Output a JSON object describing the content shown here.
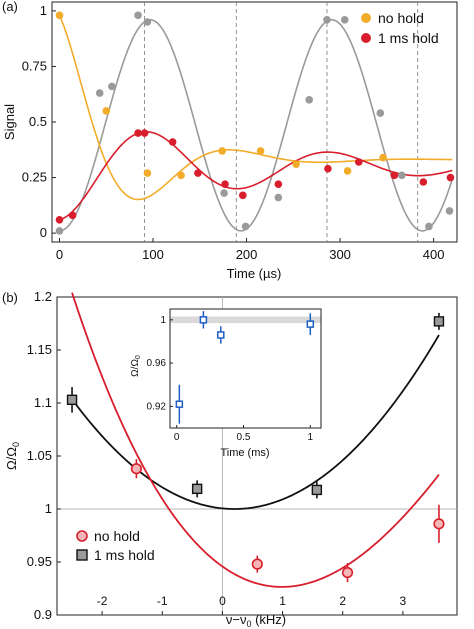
{
  "chart_data": [
    {
      "type": "scatter",
      "panel_label": "(a)",
      "xlabel": "Time (µs)",
      "ylabel": "Signal",
      "xlim": [
        -8,
        425
      ],
      "ylim": [
        -0.04,
        1.04
      ],
      "xticks": [
        0,
        100,
        200,
        300,
        400
      ],
      "yticks": [
        0,
        0.25,
        0.5,
        0.75,
        1
      ],
      "ytick_labels": [
        "0",
        "0.25",
        "0.5",
        "0.75",
        "1"
      ],
      "vlines": [
        91,
        189,
        286,
        383
      ],
      "legend_position": "top-right",
      "series": [
        {
          "name": "no hold",
          "color": "#f2ac2a",
          "x": [
            0,
            50,
            94,
            130,
            174,
            215,
            253,
            308,
            346
          ],
          "y": [
            0.98,
            0.55,
            0.27,
            0.26,
            0.37,
            0.37,
            0.31,
            0.28,
            0.34
          ]
        },
        {
          "name": "1 ms hold",
          "color": "#d81e2c",
          "x": [
            0,
            14,
            84,
            91,
            121,
            148,
            177,
            196,
            234,
            287,
            320,
            358,
            389,
            418
          ],
          "y": [
            0.06,
            0.08,
            0.45,
            0.45,
            0.41,
            0.27,
            0.22,
            0.17,
            0.22,
            0.29,
            0.32,
            0.26,
            0.23,
            0.25
          ]
        },
        {
          "name": "",
          "color": "#9a9a9a",
          "x": [
            0,
            43,
            56,
            84,
            94,
            176,
            199,
            234,
            267,
            286,
            305,
            343,
            366,
            395,
            417
          ],
          "y": [
            0.01,
            0.63,
            0.66,
            0.98,
            0.95,
            0.18,
            0.03,
            0.16,
            0.6,
            0.96,
            0.96,
            0.54,
            0.26,
            0.03,
            0.1
          ]
        }
      ],
      "fits": {
        "no_hold": {
          "form": "exp_decay_cos",
          "c": 0.33,
          "a": 0.65,
          "tau": 70,
          "period": 194,
          "color": "#f2ac2a"
        },
        "hold": {
          "form": "exp_decay_cos",
          "c": 0.3,
          "a": -0.24,
          "tau": 220,
          "period": 194,
          "color": "#d81e2c"
        },
        "gray": {
          "form": "cos",
          "c": 0.485,
          "a": -0.475,
          "period": 194,
          "color": "#9a9a9a"
        }
      }
    },
    {
      "type": "scatter",
      "panel_label": "(b)",
      "xlabel": "ν−ν₀ (kHz)",
      "ylabel": "Ω/Ω₀",
      "xlim": [
        -2.75,
        3.9
      ],
      "ylim": [
        0.9,
        1.2
      ],
      "xticks": [
        -2,
        -1,
        0,
        1,
        2,
        3
      ],
      "xtick_labels": [
        "-2",
        "-1",
        "0",
        "1",
        "2",
        "3"
      ],
      "yticks": [
        0.9,
        0.95,
        1,
        1.05,
        1.1,
        1.15,
        1.2
      ],
      "ytick_labels": [
        "0.9",
        "0.95",
        "1",
        "1.05",
        "1.1",
        "1.15",
        "1.2"
      ],
      "hline": 1,
      "vline": 0,
      "legend_position": "bottom-left",
      "series": [
        {
          "name": "no hold",
          "color": "#d81e2c",
          "marker": "circle",
          "x": [
            -1.43,
            0.58,
            2.08,
            3.6
          ],
          "y": [
            1.038,
            0.948,
            0.94,
            0.986
          ],
          "yerr": [
            0.009,
            0.008,
            0.009,
            0.018
          ]
        },
        {
          "name": "1 ms hold",
          "color": "#555555",
          "marker": "square",
          "x": [
            -2.5,
            -0.42,
            1.57,
            3.6
          ],
          "y": [
            1.103,
            1.019,
            1.018,
            1.177
          ],
          "yerr": [
            0.012,
            0.008,
            0.008,
            0.008
          ]
        }
      ],
      "fits": {
        "no_hold": {
          "form": "poly",
          "coeffs": [
            0.9458,
            -0.0403,
            0.0222,
            -0.0012
          ],
          "x_from": -2.5,
          "x_to": 3.6,
          "color": "#d81e2c"
        },
        "hold": {
          "form": "quadratic",
          "vertex_x": 0.2,
          "vertex_y": 1.0,
          "k": 0.0142,
          "x_from": -2.5,
          "x_to": 3.6,
          "color": "#111111"
        }
      },
      "inset": {
        "type": "scatter",
        "xlabel": "Time (ms)",
        "ylabel": "Ω/Ω₀",
        "xlim": [
          -0.05,
          1.08
        ],
        "ylim": [
          0.9,
          1.01
        ],
        "xticks": [
          0,
          0.5,
          1
        ],
        "xtick_labels": [
          "0",
          "0.5",
          "1"
        ],
        "yticks": [
          0.92,
          0.96,
          1
        ],
        "ytick_labels": [
          "0.92",
          "0.96",
          "1"
        ],
        "band": [
          0.997,
          1.003
        ],
        "color": "#1f5fc4",
        "x": [
          0.02,
          0.2,
          0.33,
          1.0
        ],
        "y": [
          0.922,
          1.0,
          0.986,
          0.996
        ],
        "yerr": [
          0.018,
          0.008,
          0.008,
          0.01
        ]
      }
    }
  ]
}
